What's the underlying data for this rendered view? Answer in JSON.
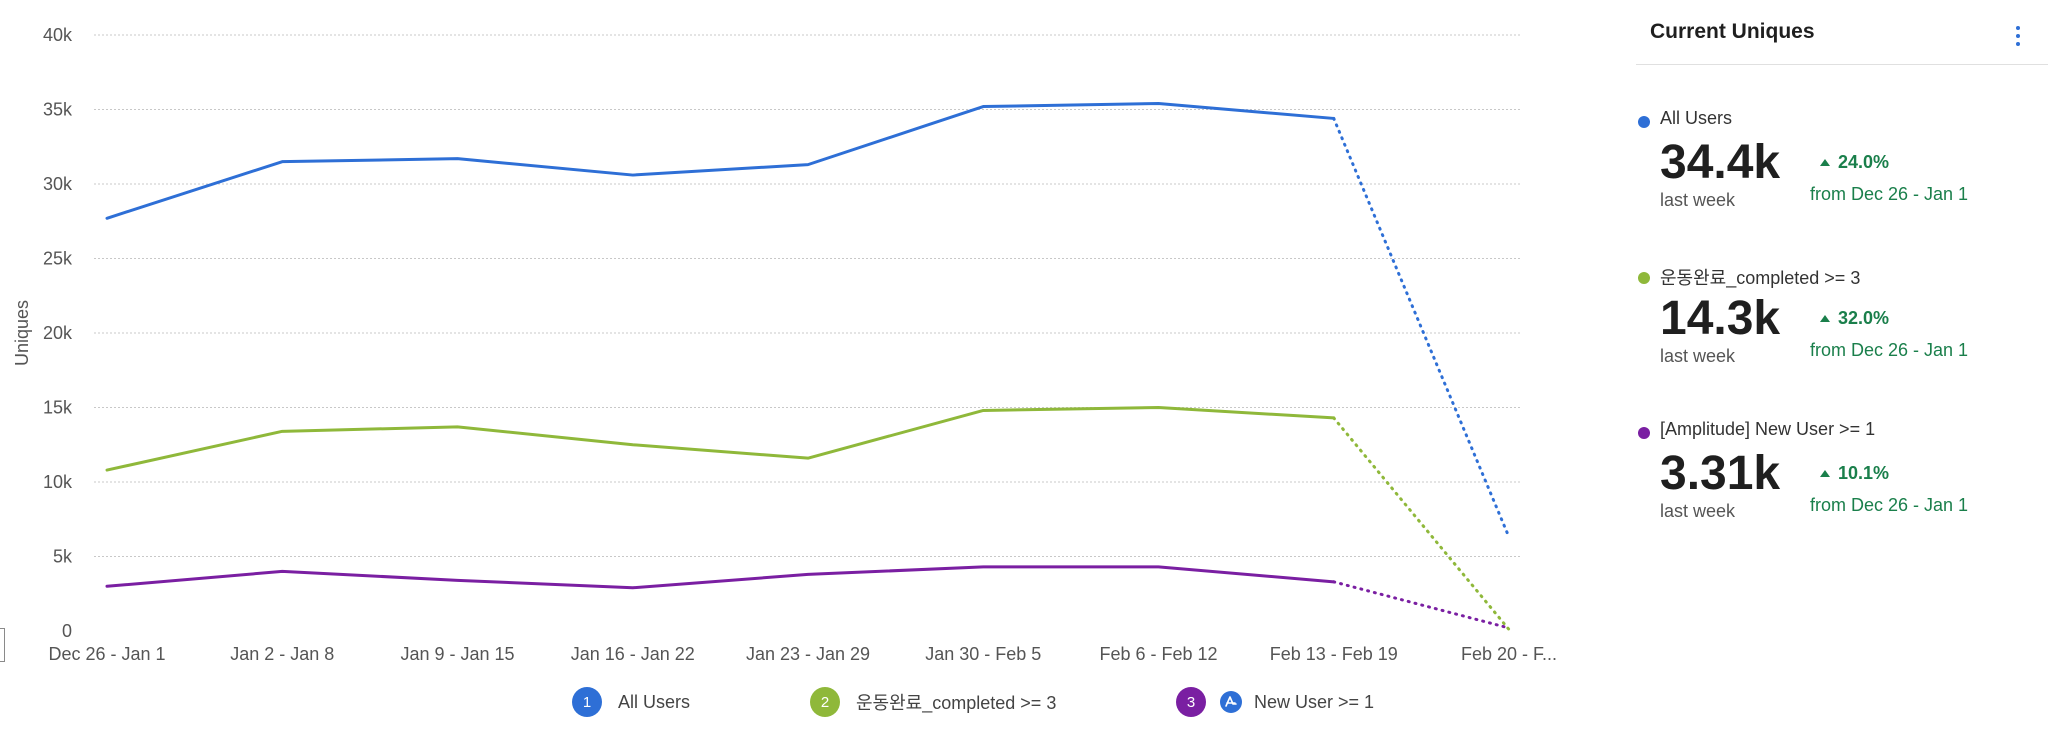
{
  "chart_data": {
    "type": "line",
    "ylabel": "Uniques",
    "xlabel": "",
    "ylim": [
      0,
      40000
    ],
    "ytick_labels": [
      "0",
      "5k",
      "10k",
      "15k",
      "20k",
      "25k",
      "30k",
      "35k",
      "40k"
    ],
    "categories": [
      "Dec 26 - Jan 1",
      "Jan 2 - Jan 8",
      "Jan 9 - Jan 15",
      "Jan 16 - Jan 22",
      "Jan 23 - Jan 29",
      "Jan 30 - Feb 5",
      "Feb 6 - Feb 12",
      "Feb 13 - Feb 19",
      "Feb 20 - F..."
    ],
    "grid": true,
    "legend_position": "bottom",
    "series": [
      {
        "name": "All Users",
        "color": "#2e6fd6",
        "values": [
          27700,
          31500,
          31700,
          30600,
          31300,
          35200,
          35400,
          34400,
          6300
        ]
      },
      {
        "name": "운동완료_completed >= 3",
        "color": "#8fb83a",
        "values": [
          10800,
          13400,
          13700,
          12500,
          11600,
          14800,
          15000,
          14300,
          100
        ]
      },
      {
        "name": "New User >= 1",
        "color": "#7a1fa2",
        "values": [
          3000,
          4000,
          3400,
          2900,
          3800,
          4300,
          4300,
          3300,
          200
        ]
      }
    ],
    "incomplete_last_point": true
  },
  "legend": [
    {
      "badge": "1",
      "label": "All Users",
      "color": "#2e6fd6"
    },
    {
      "badge": "2",
      "label": "운동완료_completed >= 3",
      "color": "#8fb83a"
    },
    {
      "badge": "3",
      "label": "New User >= 1",
      "color": "#7a1fa2",
      "icon": "amplitude-icon"
    }
  ],
  "panel": {
    "title": "Current Uniques",
    "menu_icon": "more-vertical-icon",
    "metrics": [
      {
        "name": "All Users",
        "color": "#2e6fd6",
        "value": "34.4k",
        "period": "last week",
        "change": "24.0%",
        "from": "from Dec 26 - Jan 1"
      },
      {
        "name": "운동완료_completed >= 3",
        "color": "#8fb83a",
        "value": "14.3k",
        "period": "last week",
        "change": "32.0%",
        "from": "from Dec 26 - Jan 1"
      },
      {
        "name": "[Amplitude] New User >= 1",
        "color": "#7a1fa2",
        "value": "3.31k",
        "period": "last week",
        "change": "10.1%",
        "from": "from Dec 26 - Jan 1"
      }
    ]
  }
}
